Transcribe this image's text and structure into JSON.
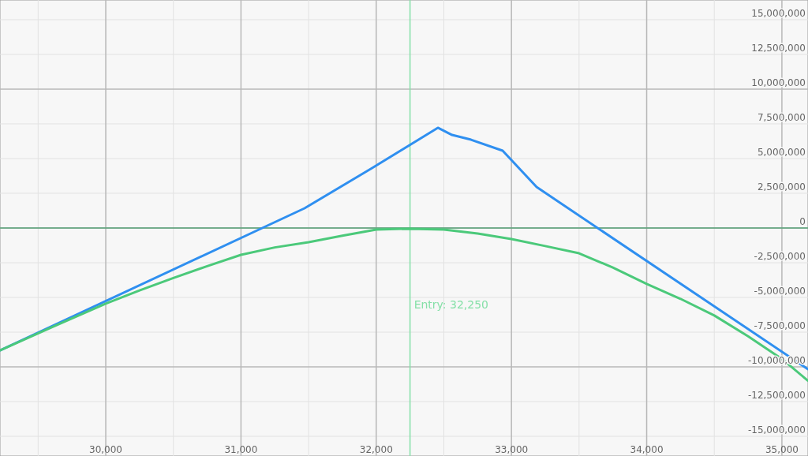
{
  "chart_data": {
    "type": "line",
    "xlim": [
      29218,
      35193
    ],
    "ylim": [
      -16420000,
      16420000
    ],
    "xticks": [
      {
        "value": 30000,
        "label": "30,000"
      },
      {
        "value": 31000,
        "label": "31,000"
      },
      {
        "value": 32000,
        "label": "32,000"
      },
      {
        "value": 33000,
        "label": "33,000"
      },
      {
        "value": 34000,
        "label": "34,000"
      },
      {
        "value": 35000,
        "label": "35,000"
      }
    ],
    "yticks": [
      {
        "value": 15000000,
        "label": "15,000,000"
      },
      {
        "value": 12500000,
        "label": "12,500,000"
      },
      {
        "value": 10000000,
        "label": "10,000,000"
      },
      {
        "value": 7500000,
        "label": "7,500,000"
      },
      {
        "value": 5000000,
        "label": "5,000,000"
      },
      {
        "value": 2500000,
        "label": "2,500,000"
      },
      0,
      {
        "value": -2500000,
        "label": "-2,500,000"
      },
      {
        "value": -5000000,
        "label": "-5,000,000"
      },
      {
        "value": -7500000,
        "label": "-7,500,000"
      },
      {
        "value": -10000000,
        "label": "-10,000,000"
      },
      {
        "value": -12500000,
        "label": "-12,500,000"
      },
      {
        "value": -15000000,
        "label": "-15,000,000"
      }
    ],
    "grid": true,
    "ref_lines": [
      {
        "axis": "x",
        "value": 32250,
        "label": "Entry: 32,250",
        "color": "#86e0a8"
      },
      {
        "axis": "y",
        "value": 0,
        "label": null,
        "color": "#5aa57a"
      }
    ],
    "series": [
      {
        "color": "#2f8ff0",
        "x": [
          29218,
          31470,
          31960,
          32456,
          32561,
          32701,
          32935,
          33186,
          35193
        ],
        "values": [
          -8810000,
          1420000,
          4260000,
          7220000,
          6700000,
          6360000,
          5570000,
          2950000,
          -10170000
        ]
      },
      {
        "color": "#4bc97a",
        "x": [
          29218,
          29600,
          30000,
          30250,
          30500,
          30750,
          31000,
          31250,
          31500,
          31750,
          32000,
          32250,
          32500,
          32750,
          33000,
          33250,
          33500,
          33750,
          34000,
          34250,
          34500,
          34750,
          35000,
          35193
        ],
        "values": [
          -8810000,
          -7150000,
          -5450000,
          -4500000,
          -3600000,
          -2750000,
          -1930000,
          -1400000,
          -1020000,
          -550000,
          -110000,
          -50000,
          -110000,
          -400000,
          -800000,
          -1300000,
          -1820000,
          -2850000,
          -4030000,
          -5100000,
          -6300000,
          -7800000,
          -9430000,
          -11000000
        ]
      }
    ]
  }
}
